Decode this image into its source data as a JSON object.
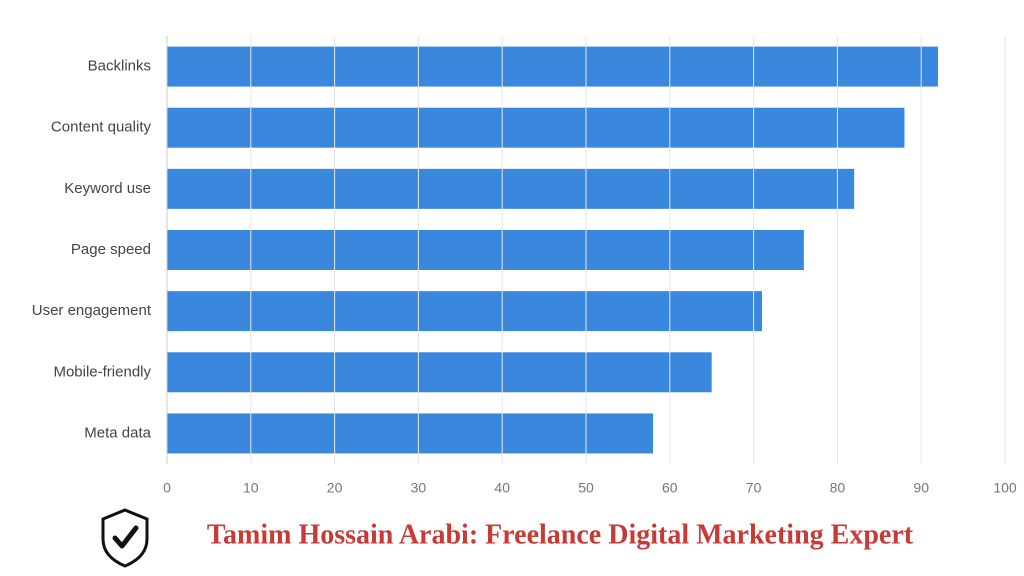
{
  "chart_data": {
    "type": "bar",
    "orientation": "horizontal",
    "categories": [
      "Backlinks",
      "Content quality",
      "Keyword use",
      "Page speed",
      "User engagement",
      "Mobile-friendly",
      "Meta data"
    ],
    "values": [
      92,
      88,
      82,
      76,
      71,
      65,
      58
    ],
    "color": "#3a88de",
    "xlim": [
      0,
      100
    ],
    "xticks": [
      0,
      10,
      20,
      30,
      40,
      50,
      60,
      70,
      80,
      90,
      100
    ],
    "grid": true
  },
  "footer": "Tamim Hossain Arabi: Freelance Digital Marketing Expert"
}
